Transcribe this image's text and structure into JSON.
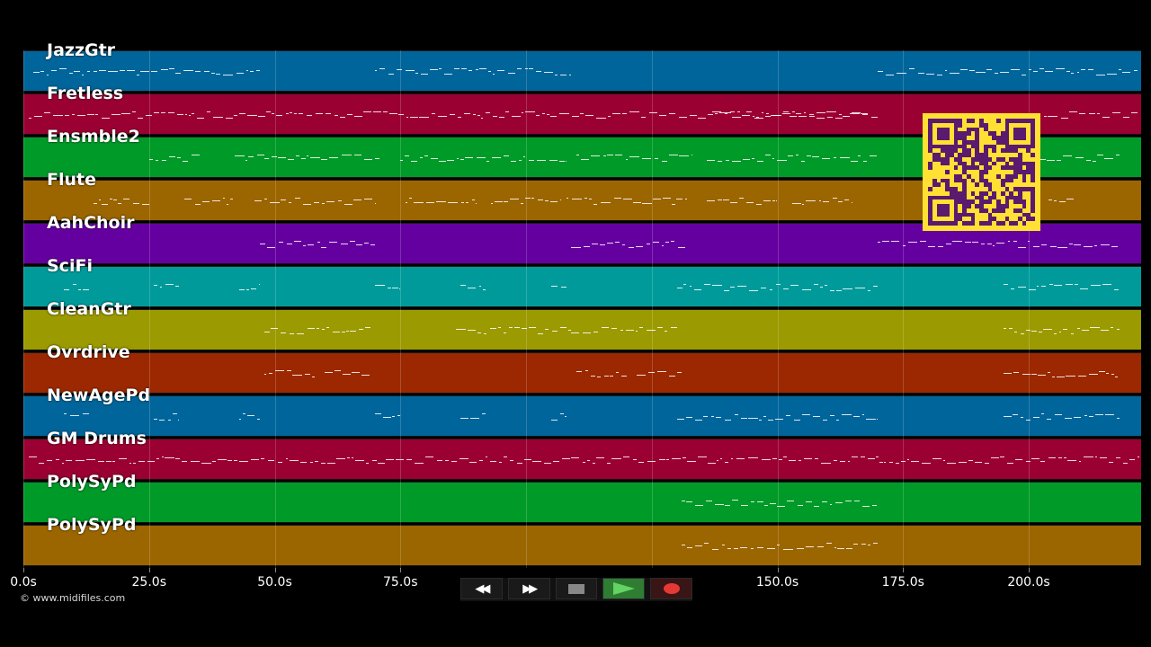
{
  "tracks": [
    {
      "name": "JazzGtr",
      "color": "#00659a"
    },
    {
      "name": "Fretless",
      "color": "#9b0032"
    },
    {
      "name": "Ensmble2",
      "color": "#009a28"
    },
    {
      "name": "Flute",
      "color": "#9b6500"
    },
    {
      "name": "AahChoir",
      "color": "#6500a0"
    },
    {
      "name": "SciFi",
      "color": "#009a9a"
    },
    {
      "name": "CleanGtr",
      "color": "#9b9a00"
    },
    {
      "name": "Ovrdrive",
      "color": "#9b2800"
    },
    {
      "name": "NewAgePd",
      "color": "#00659a"
    },
    {
      "name": "GM Drums",
      "color": "#9b0032"
    },
    {
      "name": "PolySyPd",
      "color": "#009a28"
    },
    {
      "name": "PolySyPd",
      "color": "#9b6500"
    }
  ],
  "timeline": {
    "max_seconds": 222,
    "ticks": [
      {
        "label": "0.0s",
        "seconds": 0
      },
      {
        "label": "25.0s",
        "seconds": 25
      },
      {
        "label": "50.0s",
        "seconds": 50
      },
      {
        "label": "75.0s",
        "seconds": 75
      },
      {
        "label": "150.0s",
        "seconds": 150
      },
      {
        "label": "175.0s",
        "seconds": 175
      },
      {
        "label": "200.0s",
        "seconds": 200
      }
    ],
    "grid_seconds": [
      0,
      25,
      50,
      75,
      100,
      125,
      150,
      175,
      200
    ]
  },
  "transport": {
    "rewind_label": "◀◀",
    "forward_label": "▶▶",
    "stop_icon": "stop-icon",
    "play_icon": "play-icon",
    "record_icon": "record-icon"
  },
  "qr_icon": "qr-code-icon",
  "copyright": "© www.midifiles.com"
}
